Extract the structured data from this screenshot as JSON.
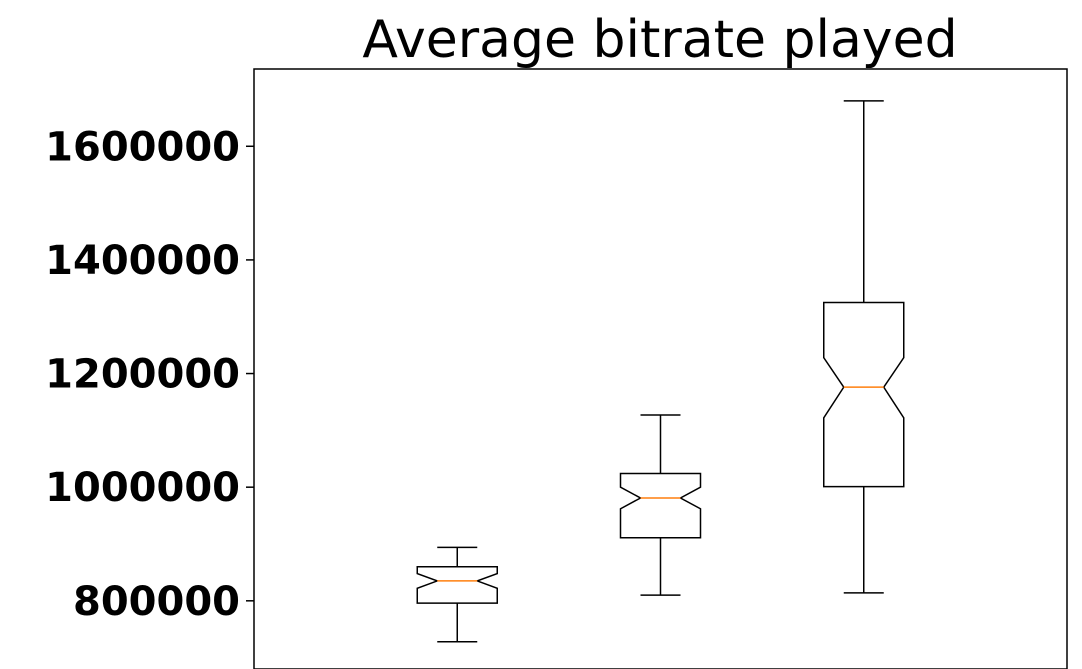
{
  "chart_data": {
    "type": "box",
    "title": "Average bitrate played",
    "xlabel": "",
    "ylabel": "",
    "ylim": [
      680000,
      1736000
    ],
    "yticks": [
      800000,
      1000000,
      1200000,
      1400000,
      1600000
    ],
    "ytick_labels": [
      "800000",
      "1000000",
      "1200000",
      "1400000",
      "1600000"
    ],
    "notched": true,
    "grid": false,
    "colors": {
      "box": "#000000",
      "median": "#ff7f0e",
      "background": "#ffffff"
    },
    "series": [
      {
        "whisker_low": 728000,
        "q1": 796000,
        "median": 835000,
        "q3": 860000,
        "whisker_high": 894000,
        "notch_low": 822000,
        "notch_high": 848000
      },
      {
        "whisker_low": 810000,
        "q1": 911000,
        "median": 981000,
        "q3": 1024000,
        "whisker_high": 1127000,
        "notch_low": 962000,
        "notch_high": 1000000
      },
      {
        "whisker_low": 814000,
        "q1": 1001000,
        "median": 1176000,
        "q3": 1325000,
        "whisker_high": 1680000,
        "notch_low": 1122000,
        "notch_high": 1228000
      }
    ]
  }
}
